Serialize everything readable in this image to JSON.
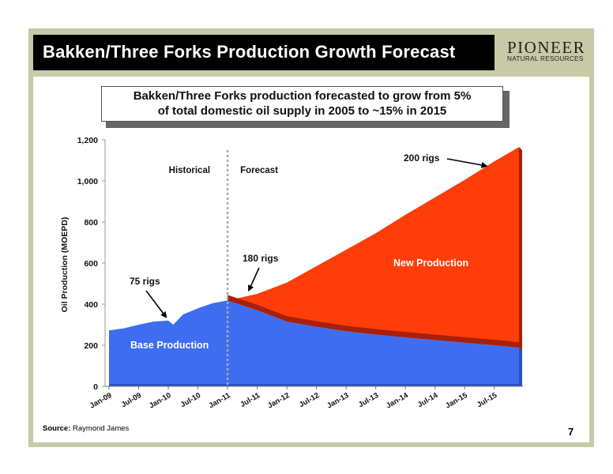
{
  "slide": {
    "title": "Bakken/Three Forks Production Growth Forecast",
    "logo_name": "PIONEER",
    "logo_sub": "NATURAL RESOURCES",
    "callout_line1": "Bakken/Three Forks production forecasted to grow from 5%",
    "callout_line2": "of total domestic oil supply in 2005 to ~15% in 2015",
    "source_label": "Source:",
    "source_text": " Raymond James",
    "page_number": "7"
  },
  "colors": {
    "frame": "#c8c9a6",
    "base": "#3f6df0",
    "base_shade": "#2a4fc2",
    "new": "#ff3d0a",
    "new_shade": "#a8200a"
  },
  "chart_data": {
    "type": "area",
    "ylabel": "Oil Production (MOEPD)",
    "ylim": [
      0,
      1200
    ],
    "yticks": [
      0,
      200,
      400,
      600,
      800,
      1000,
      1200
    ],
    "ytick_labels": [
      "0",
      "200",
      "400",
      "600",
      "800",
      "1,000",
      "1,200"
    ],
    "xlim": [
      "2009-01",
      "2015-12"
    ],
    "x_tick_labels": [
      "Jan-09",
      "Jul-09",
      "Jan-10",
      "Jul-10",
      "Jan-11",
      "Jul-11",
      "Jan-12",
      "Jul-12",
      "Jan-13",
      "Jul-13",
      "Jan-14",
      "Jul-14",
      "Jan-15",
      "Jul-15"
    ],
    "x_tick_dates": [
      "2009-01",
      "2009-07",
      "2010-01",
      "2010-07",
      "2011-01",
      "2011-07",
      "2012-01",
      "2012-07",
      "2013-01",
      "2013-07",
      "2014-01",
      "2014-07",
      "2015-01",
      "2015-07"
    ],
    "forecast_start": "2011-01",
    "region_labels": [
      "Historical",
      "Forecast"
    ],
    "series": [
      {
        "name": "Base Production",
        "x": [
          "2009-01",
          "2009-04",
          "2009-07",
          "2009-10",
          "2010-01",
          "2010-02",
          "2010-04",
          "2010-07",
          "2010-10",
          "2011-01",
          "2011-07",
          "2012-01",
          "2012-07",
          "2013-01",
          "2013-07",
          "2014-01",
          "2014-07",
          "2015-01",
          "2015-07",
          "2015-12"
        ],
        "values": [
          272,
          282,
          300,
          315,
          320,
          300,
          350,
          380,
          405,
          418,
          370,
          315,
          290,
          268,
          252,
          238,
          225,
          212,
          200,
          188
        ]
      },
      {
        "name": "New Production",
        "x": [
          "2011-01",
          "2011-07",
          "2012-01",
          "2012-07",
          "2013-01",
          "2013-07",
          "2014-01",
          "2014-07",
          "2015-01",
          "2015-07",
          "2015-12"
        ],
        "total": [
          418,
          450,
          505,
          585,
          665,
          745,
          835,
          920,
          1005,
          1095,
          1165
        ]
      }
    ],
    "annotations": [
      {
        "text": "75 rigs",
        "at": "2010-01",
        "value": 315
      },
      {
        "text": "180 rigs",
        "at": "2011-05",
        "value": 445
      },
      {
        "text": "200 rigs",
        "at": "2015-06",
        "value": 1100
      }
    ]
  }
}
